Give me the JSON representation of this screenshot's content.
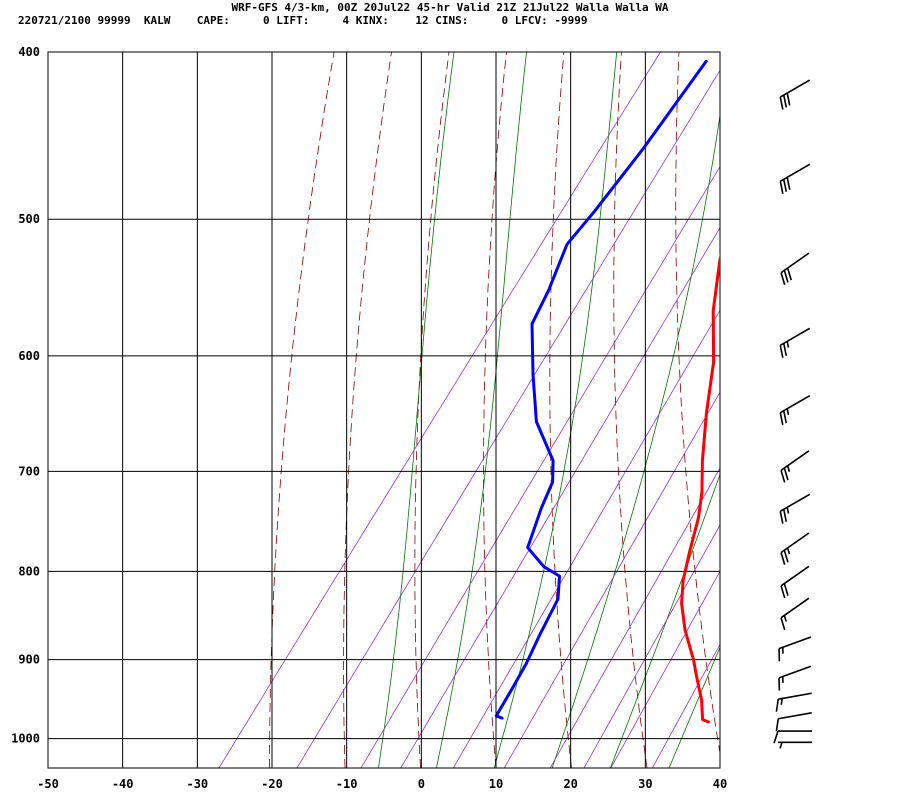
{
  "header": {
    "line1": "WRF-GFS 4/3-km, 00Z 20Jul22 45-hr Valid 21Z 21Jul22 Walla Walla WA",
    "line2": "220721/2100 99999  KALW    CAPE:     0 LIFT:     4 KINX:    12 CINS:     0 LFCV: -9999"
  },
  "chart_data": {
    "type": "line",
    "title": "WRF-GFS 4/3-km, 00Z 20Jul22 45-hr Valid 21Z 21Jul22 Walla Walla WA",
    "xlabel": "",
    "ylabel": "",
    "xlim": [
      -50,
      40
    ],
    "ylim": [
      1040,
      400
    ],
    "y_log_scale": true,
    "x_ticks": [
      -50,
      -40,
      -30,
      -20,
      -10,
      0,
      10,
      20,
      30,
      40
    ],
    "y_ticks": [
      400,
      500,
      600,
      700,
      800,
      900,
      1000
    ],
    "grid": true,
    "colors": {
      "temperature": "#ff0000",
      "dewpoint": "#0000ff",
      "dry_adiabat": "#8b0000",
      "moist_adiabat": "#007700",
      "mixing_ratio": "#9933cc",
      "grid": "#000000"
    },
    "series": [
      {
        "key": "temperature",
        "color": "#ff0000",
        "points": [
          [
            -21,
            405
          ],
          [
            -18,
            435
          ],
          [
            -15,
            465
          ],
          [
            -12,
            495
          ],
          [
            -9,
            528
          ],
          [
            -5,
            565
          ],
          [
            0,
            605
          ],
          [
            4,
            648
          ],
          [
            8,
            690
          ],
          [
            11,
            720
          ],
          [
            13,
            745
          ],
          [
            15,
            778
          ],
          [
            17,
            810
          ],
          [
            19,
            835
          ],
          [
            22,
            865
          ],
          [
            26,
            900
          ],
          [
            28,
            920
          ],
          [
            31,
            950
          ],
          [
            33,
            975
          ],
          [
            34,
            978
          ]
        ]
      },
      {
        "key": "dewpoint",
        "color": "#0000ff",
        "points": [
          [
            -30,
            405
          ],
          [
            -30,
            455
          ],
          [
            -30.5,
            495
          ],
          [
            -31,
            517
          ],
          [
            -29,
            550
          ],
          [
            -28,
            575
          ],
          [
            -23,
            615
          ],
          [
            -18,
            655
          ],
          [
            -12,
            690
          ],
          [
            -10,
            710
          ],
          [
            -9,
            735
          ],
          [
            -7,
            775
          ],
          [
            -3,
            795
          ],
          [
            0,
            805
          ],
          [
            2,
            830
          ],
          [
            3,
            870
          ],
          [
            4,
            905
          ],
          [
            4.5,
            935
          ],
          [
            5,
            970
          ],
          [
            6,
            973
          ]
        ]
      }
    ],
    "background_lines": {
      "dry_adiabats_theta_K": [
        250,
        260,
        270,
        280,
        290,
        300,
        310,
        320,
        330,
        340,
        350,
        360,
        370,
        380,
        390
      ],
      "moist_adiabats_thetaw_C": [
        -8,
        0,
        8,
        16,
        24,
        32,
        40
      ],
      "mixing_ratios_gkg": [
        0.4,
        1,
        2,
        3,
        5,
        8,
        12,
        16,
        20,
        28
      ]
    },
    "wind_barbs": [
      {
        "p": 420,
        "dir": 240,
        "spd": 30
      },
      {
        "p": 470,
        "dir": 240,
        "spd": 30
      },
      {
        "p": 530,
        "dir": 235,
        "spd": 30
      },
      {
        "p": 585,
        "dir": 240,
        "spd": 25
      },
      {
        "p": 640,
        "dir": 240,
        "spd": 25
      },
      {
        "p": 690,
        "dir": 235,
        "spd": 25
      },
      {
        "p": 730,
        "dir": 240,
        "spd": 25
      },
      {
        "p": 770,
        "dir": 235,
        "spd": 25
      },
      {
        "p": 805,
        "dir": 235,
        "spd": 20
      },
      {
        "p": 840,
        "dir": 235,
        "spd": 15
      },
      {
        "p": 880,
        "dir": 250,
        "spd": 15
      },
      {
        "p": 915,
        "dir": 250,
        "spd": 15
      },
      {
        "p": 945,
        "dir": 260,
        "spd": 15
      },
      {
        "p": 970,
        "dir": 260,
        "spd": 10
      },
      {
        "p": 990,
        "dir": 270,
        "spd": 10
      },
      {
        "p": 1005,
        "dir": 270,
        "spd": 5
      }
    ]
  }
}
